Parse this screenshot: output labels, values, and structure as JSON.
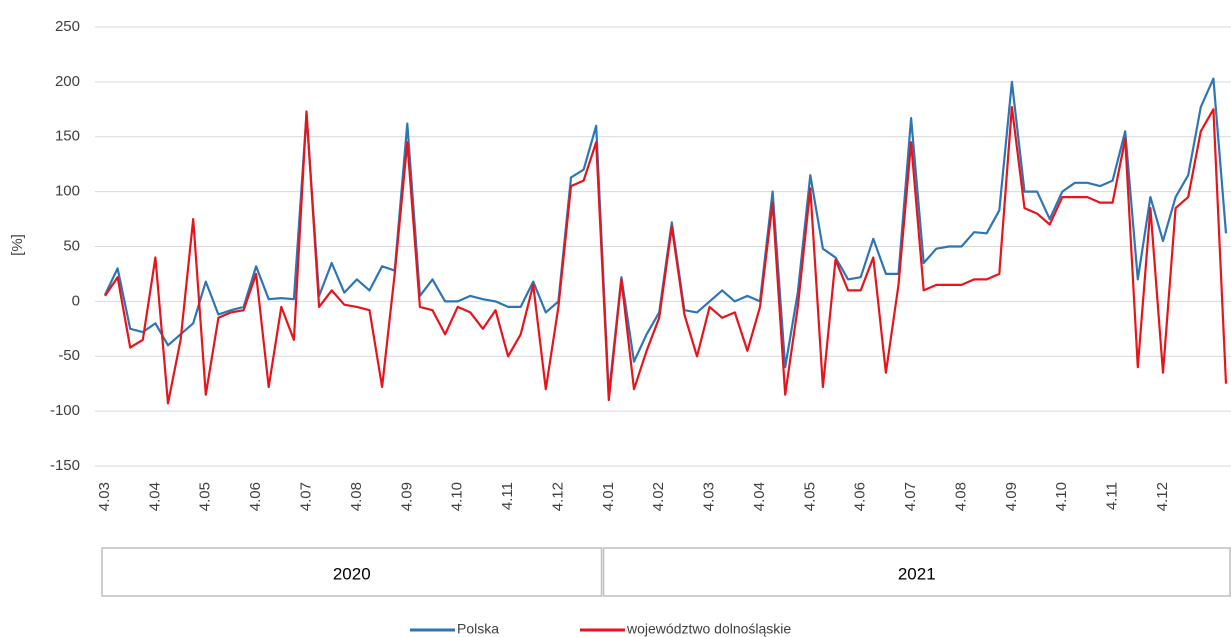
{
  "chart_data": {
    "type": "line",
    "y_label": "[%]",
    "ylim": [
      -150,
      250
    ],
    "yticks": [
      -150,
      -100,
      -50,
      0,
      50,
      100,
      150,
      200,
      250
    ],
    "grid": true,
    "legend": "bottom",
    "year_groups": [
      {
        "label": "2020",
        "categories": [
          "4.03",
          null,
          null,
          null,
          "4.04",
          null,
          null,
          null,
          "4.05",
          null,
          null,
          null,
          "4.06",
          null,
          null,
          null,
          "4.07",
          null,
          null,
          null,
          "4.08",
          null,
          null,
          null,
          "4.09",
          null,
          null,
          null,
          "4.10",
          null,
          null,
          null,
          "4.11",
          null,
          null,
          null,
          "4.12",
          null,
          null,
          null
        ]
      },
      {
        "label": "2021",
        "categories": [
          "4.01",
          null,
          null,
          null,
          "4.02",
          null,
          null,
          null,
          "4.03",
          null,
          null,
          null,
          "4.04",
          null,
          null,
          null,
          "4.05",
          null,
          null,
          null,
          "4.06",
          null,
          null,
          null,
          "4.07",
          null,
          null,
          null,
          "4.08",
          null,
          null,
          null,
          "4.09",
          null,
          null,
          null,
          "4.10",
          null,
          null,
          null,
          "4.11",
          null,
          null,
          null,
          "4.12",
          null,
          null,
          null,
          null,
          null
        ]
      }
    ],
    "series": [
      {
        "name": "Polska",
        "color": "#2e75b6",
        "values": [
          6,
          30,
          -25,
          -28,
          -20,
          -40,
          -30,
          -20,
          18,
          -12,
          -8,
          -5,
          32,
          2,
          3,
          2,
          170,
          5,
          35,
          8,
          20,
          10,
          32,
          28,
          162,
          5,
          20,
          0,
          0,
          5,
          2,
          0,
          -5,
          -5,
          18,
          -10,
          0,
          113,
          120,
          160,
          -85,
          22,
          -55,
          -30,
          -10,
          72,
          -8,
          -10,
          0,
          10,
          0,
          5,
          0,
          100,
          -60,
          8,
          115,
          48,
          40,
          20,
          22,
          57,
          25,
          25,
          167,
          35,
          48,
          50,
          50,
          63,
          62,
          83,
          200,
          100,
          100,
          75,
          100,
          108,
          108,
          105,
          110,
          155,
          20,
          95,
          55,
          95,
          115,
          177,
          203,
          62
        ]
      },
      {
        "name": "województwo dolnośląskie",
        "color": "#e8141b",
        "values": [
          5,
          22,
          -42,
          -35,
          40,
          -93,
          -35,
          75,
          -85,
          -15,
          -10,
          -8,
          25,
          -78,
          -5,
          -35,
          173,
          -5,
          10,
          -3,
          -5,
          -8,
          -78,
          25,
          145,
          -5,
          -8,
          -30,
          -5,
          -10,
          -25,
          -8,
          -50,
          -30,
          15,
          -80,
          -5,
          105,
          110,
          145,
          -90,
          20,
          -80,
          -45,
          -15,
          68,
          -12,
          -50,
          -5,
          -15,
          -10,
          -45,
          -5,
          90,
          -85,
          -5,
          103,
          -78,
          38,
          10,
          10,
          40,
          -65,
          15,
          145,
          10,
          15,
          15,
          15,
          20,
          20,
          25,
          177,
          85,
          80,
          70,
          95,
          95,
          95,
          90,
          90,
          148,
          -60,
          85,
          -65,
          85,
          95,
          155,
          175,
          -75
        ]
      }
    ]
  }
}
